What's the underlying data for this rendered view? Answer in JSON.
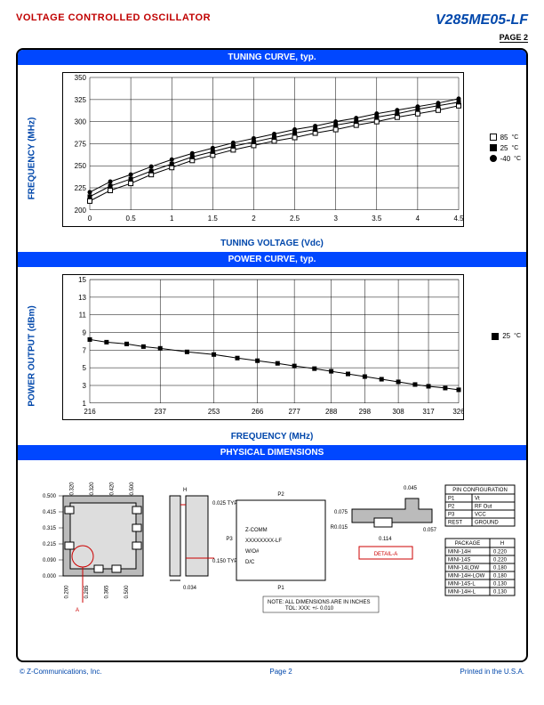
{
  "header": {
    "title": "VOLTAGE CONTROLLED OSCILLATOR",
    "part": "V285ME05-LF",
    "page_label": "PAGE 2"
  },
  "tuning_chart": {
    "title": "TUNING CURVE, typ.",
    "ylabel": "FREQUENCY (MHz)",
    "xlabel": "TUNING VOLTAGE (Vdc)",
    "xlim": [
      0,
      4.5
    ],
    "xtick_step": 0.5,
    "ylim": [
      200,
      350
    ],
    "ytick_step": 25,
    "grid_color": "#000000",
    "series": [
      {
        "name": "85",
        "marker": "square-open",
        "color": "#000000",
        "x": [
          0,
          0.25,
          0.5,
          0.75,
          1,
          1.25,
          1.5,
          1.75,
          2,
          2.25,
          2.5,
          2.75,
          3,
          3.25,
          3.5,
          3.75,
          4,
          4.25,
          4.5
        ],
        "y": [
          210,
          222,
          230,
          240,
          248,
          256,
          262,
          268,
          273,
          278,
          282,
          287,
          291,
          296,
          300,
          305,
          309,
          313,
          318
        ]
      },
      {
        "name": "25",
        "marker": "square-filled",
        "color": "#000000",
        "x": [
          0,
          0.25,
          0.5,
          0.75,
          1,
          1.25,
          1.5,
          1.75,
          2,
          2.25,
          2.5,
          2.75,
          3,
          3.25,
          3.5,
          3.75,
          4,
          4.25,
          4.5
        ],
        "y": [
          215,
          227,
          235,
          244,
          252,
          260,
          266,
          272,
          277,
          282,
          287,
          291,
          296,
          300,
          305,
          309,
          314,
          318,
          322
        ]
      },
      {
        "name": "-40",
        "marker": "circle-filled",
        "color": "#000000",
        "x": [
          0,
          0.25,
          0.5,
          0.75,
          1,
          1.25,
          1.5,
          1.75,
          2,
          2.25,
          2.5,
          2.75,
          3,
          3.25,
          3.5,
          3.75,
          4,
          4.25,
          4.5
        ],
        "y": [
          220,
          232,
          240,
          249,
          257,
          264,
          270,
          276,
          281,
          286,
          291,
          295,
          300,
          304,
          309,
          313,
          317,
          321,
          326
        ]
      }
    ],
    "legend_labels": [
      "85",
      "25",
      "-40"
    ],
    "legend_unit": "°C"
  },
  "power_chart": {
    "title": "POWER CURVE, typ.",
    "ylabel": "POWER OUTPUT (dBm)",
    "xlabel": "FREQUENCY (MHz)",
    "xticks": [
      216,
      237,
      253,
      266,
      277,
      288,
      298,
      308,
      317,
      326
    ],
    "ylim": [
      1,
      15
    ],
    "ytick_step": 2,
    "grid_color": "#000000",
    "series": [
      {
        "name": "25",
        "marker": "square-filled",
        "color": "#000000",
        "x": [
          216,
          221,
          227,
          232,
          237,
          245,
          253,
          260,
          266,
          272,
          277,
          283,
          288,
          293,
          298,
          303,
          308,
          313,
          317,
          322,
          326
        ],
        "y": [
          8.2,
          7.9,
          7.7,
          7.4,
          7.2,
          6.8,
          6.5,
          6.1,
          5.8,
          5.5,
          5.2,
          4.9,
          4.6,
          4.3,
          4.0,
          3.7,
          3.4,
          3.1,
          2.9,
          2.7,
          2.5
        ]
      }
    ],
    "legend_labels": [
      "25"
    ],
    "legend_unit": "°C"
  },
  "physical": {
    "title": "PHYSICAL DIMENSIONS",
    "note": "NOTE: ALL DIMENSIONS ARE IN INCHES",
    "tol": "TOL: XXX: +/- 0.010",
    "chip_label": "Z-COMM\nXXXXXXXX-LF\nW/O#\nD/C",
    "detail_label": "DETAIL-A",
    "pkg_dims_left": [
      "0.500",
      "0.415",
      "0.315",
      "0.215",
      "0.090",
      "0.000"
    ],
    "pkg_dims_bottom": [
      "0.200",
      "0.285",
      "0.365",
      "0.500"
    ],
    "pkg_dims_top": [
      "0.320",
      "0.320",
      "0.420",
      "0.500"
    ],
    "side_dims": [
      "0.025 TYP",
      "0.150 TYP",
      "0.034"
    ],
    "detail_dims": [
      "0.045",
      "0.075",
      "R0.015",
      "0.114",
      "0.057"
    ],
    "pins_title": "PIN CONFIGURATION",
    "pins": [
      [
        "P1",
        "Vt"
      ],
      [
        "P2",
        "RF Out"
      ],
      [
        "P3",
        "VCC"
      ],
      [
        "REST",
        "GROUND"
      ]
    ],
    "pkg_title": [
      "PACKAGE",
      "H"
    ],
    "packages": [
      [
        "MINI-14H",
        "0.220"
      ],
      [
        "MINI-14S",
        "0.220"
      ],
      [
        "MINI-14LOW",
        "0.180"
      ],
      [
        "MINI-14H-LOW",
        "0.180"
      ],
      [
        "MINI-14S-L",
        "0.130"
      ],
      [
        "MINI-14H-L",
        "0.130"
      ]
    ]
  },
  "footer": {
    "left": "© Z-Communications, Inc.",
    "center": "Page 2",
    "right": "Printed in the U.S.A."
  }
}
